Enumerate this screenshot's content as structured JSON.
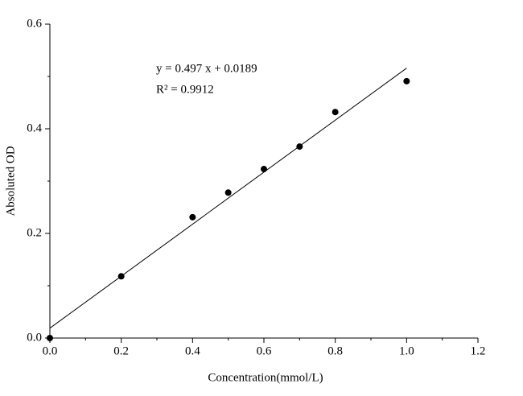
{
  "chart_data": {
    "type": "scatter",
    "x_label": "Concentration(mmol/L)",
    "y_label": "Absoluted OD",
    "x": [
      0,
      0.2,
      0.4,
      0.5,
      0.6,
      0.7,
      0.8,
      1.0
    ],
    "values": [
      0,
      0.118,
      0.231,
      0.278,
      0.323,
      0.366,
      0.432,
      0.491
    ],
    "color": "#000000",
    "fit": {
      "slope": 0.497,
      "intercept": 0.0189
    },
    "annotations": [
      "y = 0.497 x + 0.0189",
      "R² = 0.9912"
    ],
    "xlim": [
      0,
      1.2
    ],
    "ylim": [
      0,
      0.6
    ],
    "xticks": [
      {
        "value": 0,
        "label": "0.0"
      },
      0.2,
      0.4,
      0.6,
      0.8,
      {
        "value": 1,
        "label": "1.0"
      },
      1.2
    ],
    "yticks": [
      {
        "value": 0,
        "label": "0.0"
      },
      0.2,
      0.4,
      0.6
    ],
    "xminorticks": [
      0.1,
      0.3,
      0.5,
      0.7,
      0.9,
      1.1
    ],
    "yminorticks": [
      0.1,
      0.3,
      0.5
    ]
  }
}
